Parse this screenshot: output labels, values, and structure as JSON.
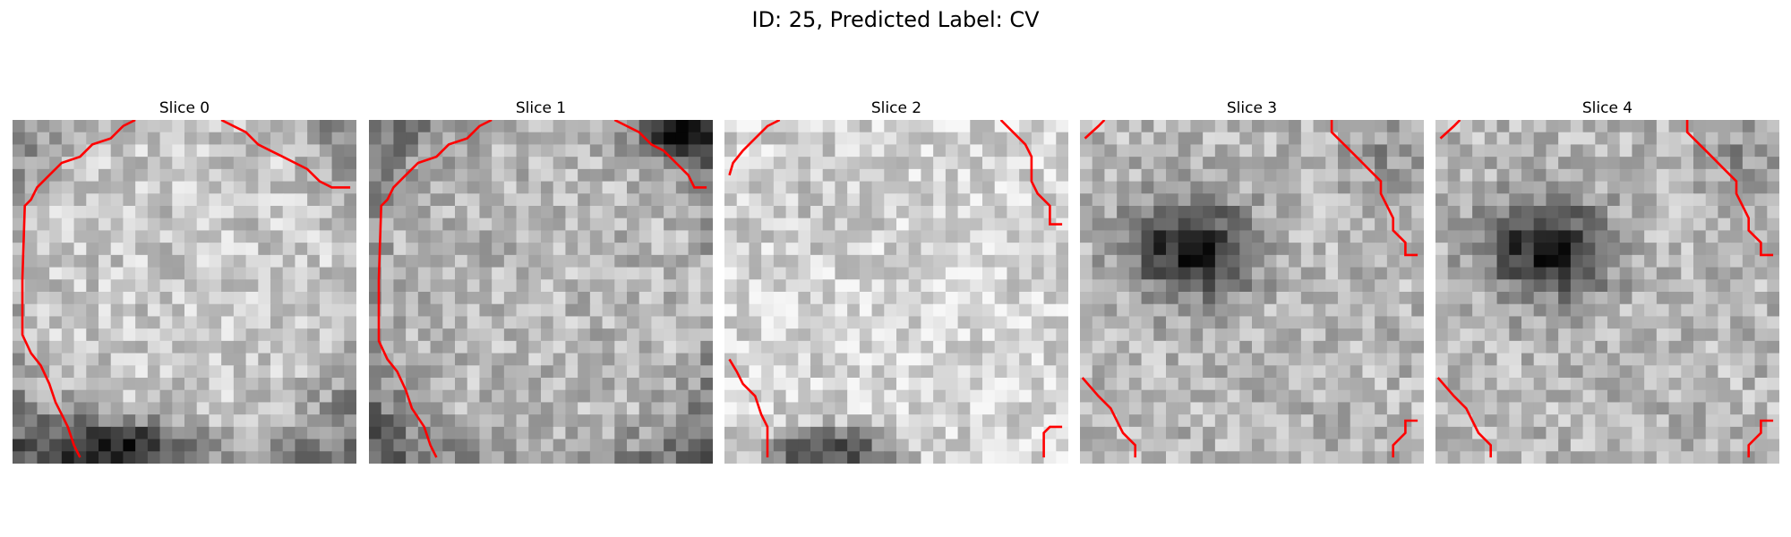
{
  "figure": {
    "title": "ID: 25, Predicted Label: CV"
  },
  "overlay_color": "#ff0000",
  "slices": [
    {
      "title": "Slice 0"
    },
    {
      "title": "Slice 1"
    },
    {
      "title": "Slice 2"
    },
    {
      "title": "Slice 3"
    },
    {
      "title": "Slice 4"
    }
  ]
}
